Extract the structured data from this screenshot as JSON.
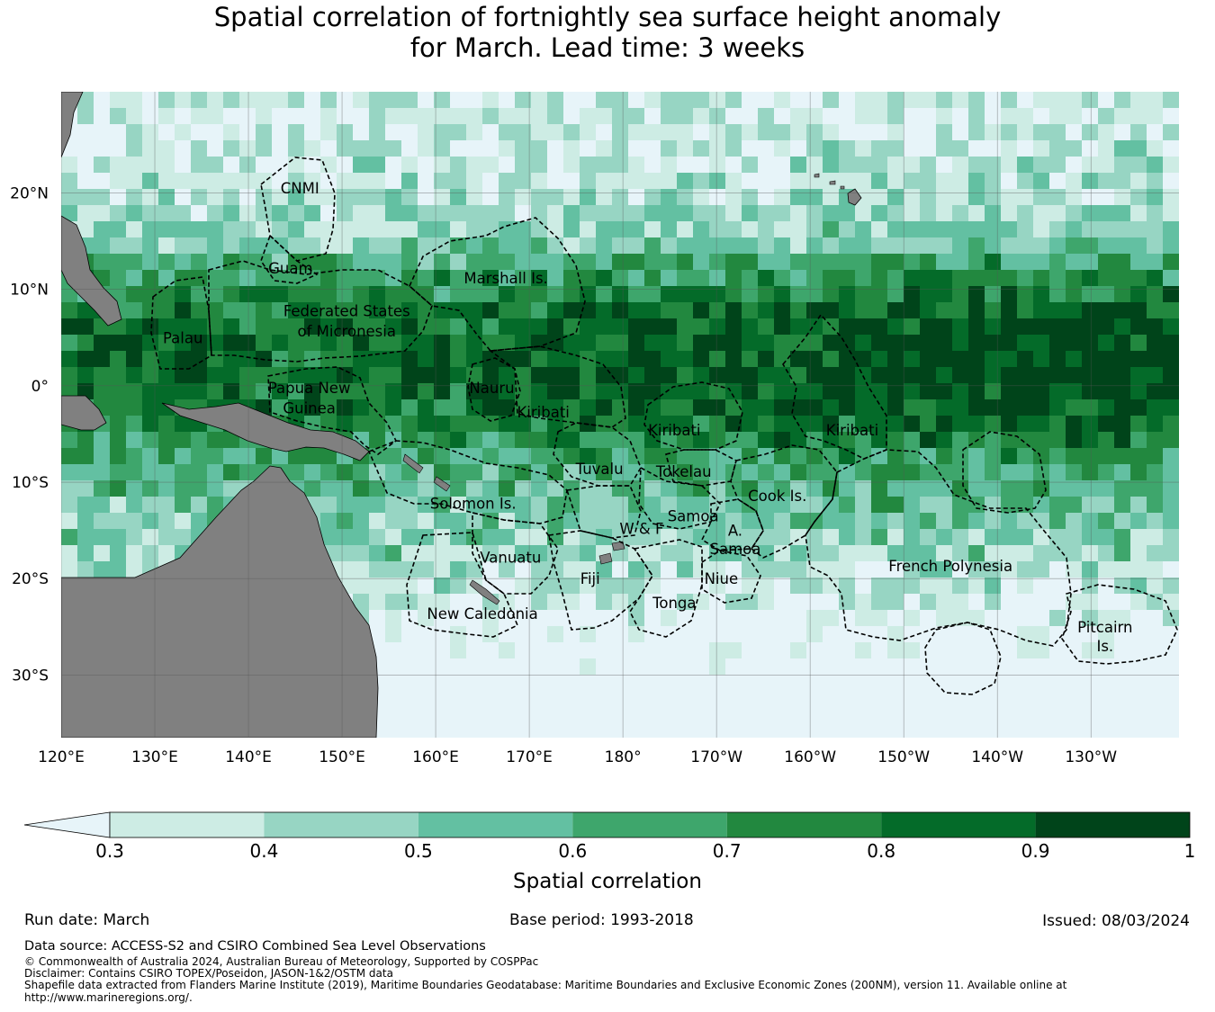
{
  "title": {
    "line1": "Spatial correlation of fortnightly sea surface height anomaly",
    "line2": "for March. Lead time: 3 weeks"
  },
  "map": {
    "lat_ticks": [
      {
        "value": 20,
        "label": "20°N"
      },
      {
        "value": 10,
        "label": "10°N"
      },
      {
        "value": 0,
        "label": "0°"
      },
      {
        "value": -10,
        "label": "10°S"
      },
      {
        "value": -20,
        "label": "20°S"
      },
      {
        "value": -30,
        "label": "30°S"
      }
    ],
    "lon_ticks": [
      {
        "value": 120,
        "label": "120°E"
      },
      {
        "value": 130,
        "label": "130°E"
      },
      {
        "value": 140,
        "label": "140°E"
      },
      {
        "value": 150,
        "label": "150°E"
      },
      {
        "value": 160,
        "label": "160°E"
      },
      {
        "value": 170,
        "label": "170°E"
      },
      {
        "value": 180,
        "label": "180°"
      },
      {
        "value": 190,
        "label": "170°W"
      },
      {
        "value": 200,
        "label": "160°W"
      },
      {
        "value": 210,
        "label": "150°W"
      },
      {
        "value": 220,
        "label": "140°W"
      },
      {
        "value": 230,
        "label": "130°W"
      }
    ],
    "regions": [
      {
        "name": "CNMI",
        "lon": 145.5,
        "lat": 20.5
      },
      {
        "name": "Guam",
        "lon": 144.5,
        "lat": 12.2
      },
      {
        "name": "Marshall Is.",
        "lon": 167.5,
        "lat": 11.2
      },
      {
        "name": "Federated States",
        "lon": 150.5,
        "lat": 7.8
      },
      {
        "name": "of Micronesia",
        "lon": 150.5,
        "lat": 5.7
      },
      {
        "name": "Palau",
        "lon": 133,
        "lat": 5
      },
      {
        "name": "Papua New",
        "lon": 146.5,
        "lat": -0.2
      },
      {
        "name": "Guinea",
        "lon": 146.5,
        "lat": -2.3
      },
      {
        "name": "Nauru",
        "lon": 166,
        "lat": -0.2
      },
      {
        "name": "Kiribati",
        "lon": 171.5,
        "lat": -2.7
      },
      {
        "name": "Kiribati",
        "lon": 185.5,
        "lat": -4.6
      },
      {
        "name": "Kiribati",
        "lon": 204.5,
        "lat": -4.6
      },
      {
        "name": "Tuvalu",
        "lon": 177.5,
        "lat": -8.6
      },
      {
        "name": "Tokelau",
        "lon": 186.5,
        "lat": -8.9
      },
      {
        "name": "Cook Is.",
        "lon": 196.5,
        "lat": -11.4
      },
      {
        "name": "Solomon Is.",
        "lon": 164,
        "lat": -12.2
      },
      {
        "name": "Samoa",
        "lon": 187.5,
        "lat": -13.5
      },
      {
        "name": "W & F",
        "lon": 182,
        "lat": -14.8
      },
      {
        "name": "A.",
        "lon": 192,
        "lat": -15
      },
      {
        "name": "Samoa",
        "lon": 192,
        "lat": -16.9
      },
      {
        "name": "Vanuatu",
        "lon": 168,
        "lat": -17.8
      },
      {
        "name": "Fiji",
        "lon": 176.5,
        "lat": -20
      },
      {
        "name": "Niue",
        "lon": 190.5,
        "lat": -20
      },
      {
        "name": "Tonga",
        "lon": 185.5,
        "lat": -22.5
      },
      {
        "name": "French Polynesia",
        "lon": 215,
        "lat": -18.7
      },
      {
        "name": "New Caledonia",
        "lon": 165,
        "lat": -23.6
      },
      {
        "name": "Pitcairn",
        "lon": 231.5,
        "lat": -25
      },
      {
        "name": "Is.",
        "lon": 231.5,
        "lat": -27
      }
    ],
    "land_color": "#808080",
    "boundary_style": "dashed black"
  },
  "colorbar": {
    "title": "Spatial correlation",
    "ticks": [
      "0.3",
      "0.4",
      "0.5",
      "0.6",
      "0.7",
      "0.8",
      "0.9",
      "1"
    ],
    "extend_color": "#e7f4f9",
    "colors": [
      "#cdece4",
      "#97d5c3",
      "#63c0a2",
      "#3ea66c",
      "#22883f",
      "#046b29",
      "#00441a"
    ]
  },
  "meta": {
    "run_date": "Run date: March",
    "base_period": "Base period: 1993-2018",
    "issued": "Issued: 08/03/2024"
  },
  "footer": {
    "data_source": "Data source: ACCESS-S2 and CSIRO Combined Sea Level Observations",
    "copyright": "© Commonwealth of Australia 2024, Australian Bureau of Meteorology, Supported by COSPPac",
    "disclaimer": "Disclaimer: Contains CSIRO TOPEX/Poseidon, JASON-1&2/OSTM data",
    "shapefile": "Shapefile data extracted from Flanders Marine Institute (2019), Maritime Boundaries Geodatabase: Maritime Boundaries and Exclusive Economic Zones (200NM), version 11. Available online at",
    "url": "http://www.marineregions.org/."
  }
}
